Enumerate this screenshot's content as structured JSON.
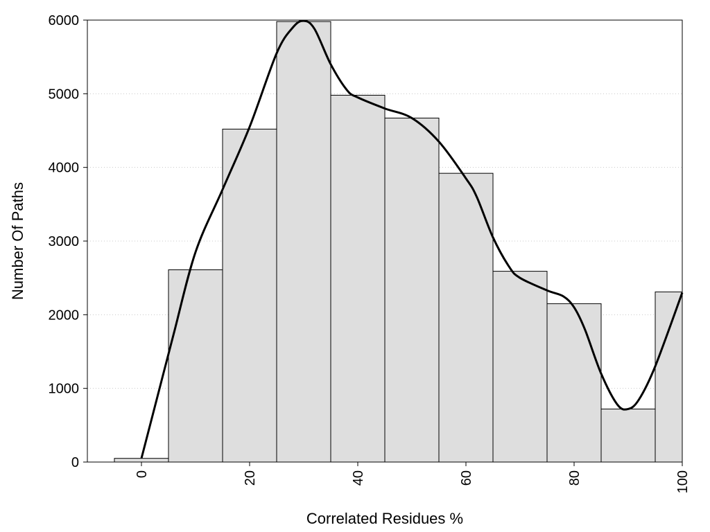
{
  "chart_data": {
    "type": "bar",
    "xlabel": "Correlated Residues %",
    "ylabel": "Number Of Paths",
    "xlim": [
      -10,
      100
    ],
    "ylim": [
      0,
      6000
    ],
    "x_ticks": [
      0,
      20,
      40,
      60,
      80,
      100
    ],
    "y_ticks": [
      0,
      1000,
      2000,
      3000,
      4000,
      5000,
      6000
    ],
    "grid": "horizontal-dotted",
    "bar_color": "#dedede",
    "bins": [
      {
        "start": -5,
        "end": 5,
        "value": 50
      },
      {
        "start": 5,
        "end": 15,
        "value": 2610
      },
      {
        "start": 15,
        "end": 25,
        "value": 4520
      },
      {
        "start": 25,
        "end": 35,
        "value": 5980
      },
      {
        "start": 35,
        "end": 45,
        "value": 4980
      },
      {
        "start": 45,
        "end": 55,
        "value": 4670
      },
      {
        "start": 55,
        "end": 65,
        "value": 3920
      },
      {
        "start": 65,
        "end": 75,
        "value": 2590
      },
      {
        "start": 75,
        "end": 85,
        "value": 2150
      },
      {
        "start": 85,
        "end": 95,
        "value": 720
      },
      {
        "start": 95,
        "end": 100,
        "value": 2310
      }
    ],
    "curve": {
      "x": [
        0,
        3,
        6,
        10,
        15,
        20,
        25,
        28,
        30,
        32,
        35,
        38,
        40,
        45,
        50,
        55,
        60,
        62,
        65,
        68,
        70,
        75,
        78,
        80,
        82,
        85,
        88,
        90,
        92,
        95,
        100
      ],
      "y": [
        50,
        900,
        1750,
        2850,
        3700,
        4550,
        5550,
        5900,
        5990,
        5880,
        5400,
        5050,
        4950,
        4800,
        4670,
        4350,
        3850,
        3600,
        3050,
        2650,
        2500,
        2330,
        2250,
        2100,
        1800,
        1200,
        780,
        720,
        850,
        1300,
        2300
      ]
    }
  }
}
